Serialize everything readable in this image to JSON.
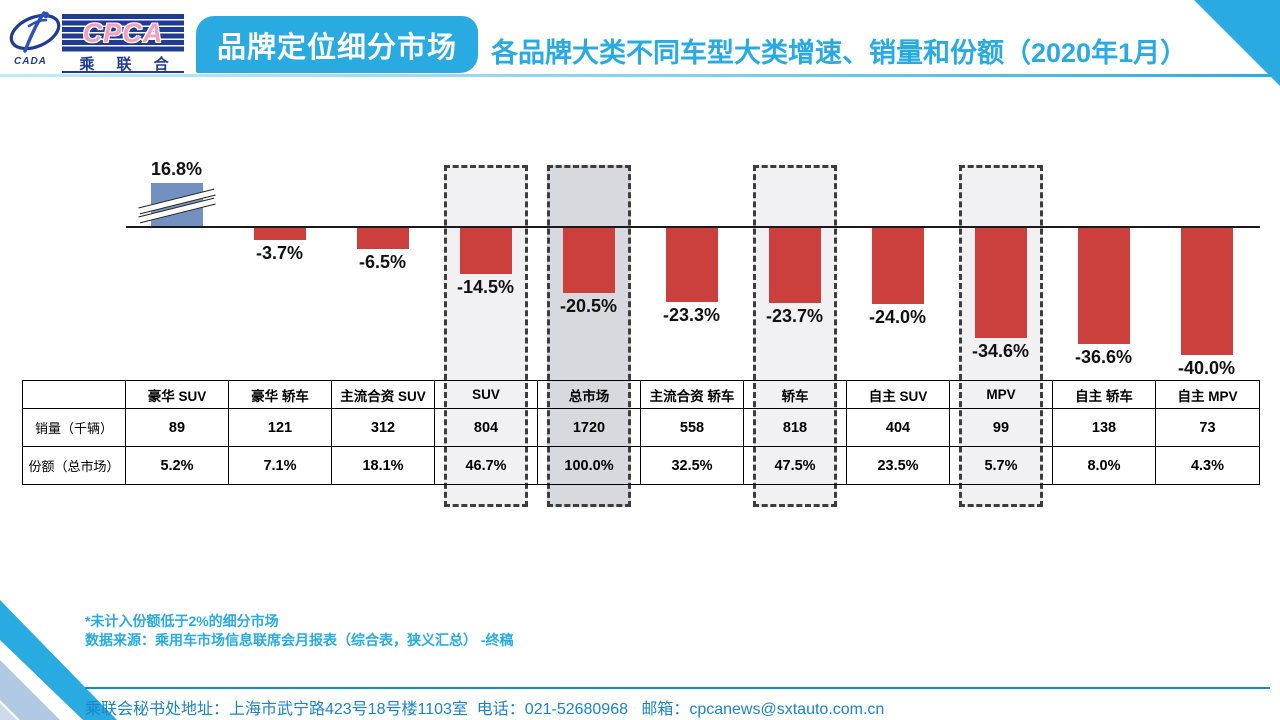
{
  "page": {
    "accent_cyan": "#29ABE2",
    "logo_navy": "#203C92"
  },
  "header": {
    "logo": {
      "cada": "CADA",
      "cpca": "CPCA",
      "cn": "乘 联 合"
    },
    "title": "品牌定位细分市场",
    "subtitle": "各品牌大类不同车型大类增速、销量和份额（2020年1月）"
  },
  "chart_data": {
    "type": "bar",
    "title": "各品牌大类不同车型大类增速、销量和份额（2020年1月）",
    "categories": [
      "豪华 SUV",
      "豪华 轿车",
      "主流合资 SUV",
      "SUV",
      "总市场",
      "主流合资 轿车",
      "轿车",
      "自主 SUV",
      "MPV",
      "自主 轿车",
      "自主 MPV"
    ],
    "growth_pct": [
      16.8,
      -3.7,
      -6.5,
      -14.5,
      -20.5,
      -23.3,
      -23.7,
      -24.0,
      -34.6,
      -36.6,
      -40.0
    ],
    "growth_labels": [
      "16.8%",
      "-3.7%",
      "-6.5%",
      "-14.5%",
      "-20.5%",
      "-23.3%",
      "-23.7%",
      "-24.0%",
      "-34.6%",
      "-36.6%",
      "-40.0%"
    ],
    "sales_thousands": [
      "89",
      "121",
      "312",
      "804",
      "1720",
      "558",
      "818",
      "404",
      "99",
      "138",
      "73"
    ],
    "share_of_total": [
      "5.2%",
      "7.1%",
      "18.1%",
      "46.7%",
      "100.0%",
      "32.5%",
      "47.5%",
      "23.5%",
      "5.7%",
      "8.0%",
      "4.3%"
    ],
    "highlighted_categories": [
      "SUV",
      "总市场",
      "轿车",
      "MPV"
    ],
    "highlight_fills": {
      "SUV": "#F1F1F4",
      "总市场": "#D8D8DF",
      "轿车": "#F1F1F4",
      "MPV": "#F1F1F4"
    },
    "axis_break_on_first_bar": true,
    "bar_colors": {
      "positive": "#7291C1",
      "negative": "#CB403C"
    },
    "legend": "none",
    "yaxis": "hidden (zero baseline only)"
  },
  "table": {
    "row_labels": [
      "销量（千辆）",
      "份额（总市场）"
    ]
  },
  "footnotes": {
    "line1": "*未计入份额低于2%的细分市场",
    "line2": "数据来源：乘用车市场信息联席会月报表（综合表，狭义汇总） -终稿"
  },
  "footer": {
    "text": "乘联会秘书处地址：上海市武宁路423号18号楼1103室  电话：021-52680968   邮箱：cpcanews@sxtauto.com.cn"
  }
}
